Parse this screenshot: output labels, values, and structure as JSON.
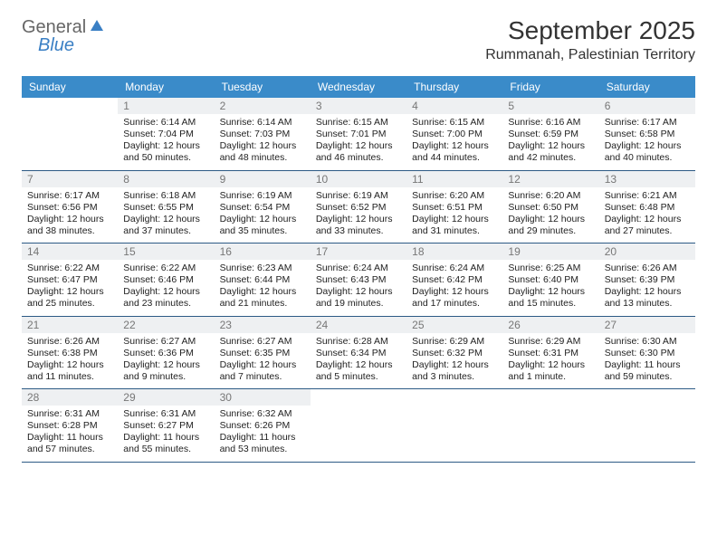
{
  "brand": {
    "general": "General",
    "blue": "Blue"
  },
  "title": "September 2025",
  "location": "Rummanah, Palestinian Territory",
  "colors": {
    "header_bg": "#3a8bc9",
    "header_text": "#ffffff",
    "daynum_bg": "#eef0f2",
    "daynum_text": "#777777",
    "divider": "#2d5a85",
    "body_text": "#222222",
    "logo_blue": "#3a7fc4",
    "logo_gray": "#666666"
  },
  "day_names": [
    "Sunday",
    "Monday",
    "Tuesday",
    "Wednesday",
    "Thursday",
    "Friday",
    "Saturday"
  ],
  "weeks": [
    [
      null,
      {
        "d": "1",
        "sr": "Sunrise: 6:14 AM",
        "ss": "Sunset: 7:04 PM",
        "dl1": "Daylight: 12 hours",
        "dl2": "and 50 minutes."
      },
      {
        "d": "2",
        "sr": "Sunrise: 6:14 AM",
        "ss": "Sunset: 7:03 PM",
        "dl1": "Daylight: 12 hours",
        "dl2": "and 48 minutes."
      },
      {
        "d": "3",
        "sr": "Sunrise: 6:15 AM",
        "ss": "Sunset: 7:01 PM",
        "dl1": "Daylight: 12 hours",
        "dl2": "and 46 minutes."
      },
      {
        "d": "4",
        "sr": "Sunrise: 6:15 AM",
        "ss": "Sunset: 7:00 PM",
        "dl1": "Daylight: 12 hours",
        "dl2": "and 44 minutes."
      },
      {
        "d": "5",
        "sr": "Sunrise: 6:16 AM",
        "ss": "Sunset: 6:59 PM",
        "dl1": "Daylight: 12 hours",
        "dl2": "and 42 minutes."
      },
      {
        "d": "6",
        "sr": "Sunrise: 6:17 AM",
        "ss": "Sunset: 6:58 PM",
        "dl1": "Daylight: 12 hours",
        "dl2": "and 40 minutes."
      }
    ],
    [
      {
        "d": "7",
        "sr": "Sunrise: 6:17 AM",
        "ss": "Sunset: 6:56 PM",
        "dl1": "Daylight: 12 hours",
        "dl2": "and 38 minutes."
      },
      {
        "d": "8",
        "sr": "Sunrise: 6:18 AM",
        "ss": "Sunset: 6:55 PM",
        "dl1": "Daylight: 12 hours",
        "dl2": "and 37 minutes."
      },
      {
        "d": "9",
        "sr": "Sunrise: 6:19 AM",
        "ss": "Sunset: 6:54 PM",
        "dl1": "Daylight: 12 hours",
        "dl2": "and 35 minutes."
      },
      {
        "d": "10",
        "sr": "Sunrise: 6:19 AM",
        "ss": "Sunset: 6:52 PM",
        "dl1": "Daylight: 12 hours",
        "dl2": "and 33 minutes."
      },
      {
        "d": "11",
        "sr": "Sunrise: 6:20 AM",
        "ss": "Sunset: 6:51 PM",
        "dl1": "Daylight: 12 hours",
        "dl2": "and 31 minutes."
      },
      {
        "d": "12",
        "sr": "Sunrise: 6:20 AM",
        "ss": "Sunset: 6:50 PM",
        "dl1": "Daylight: 12 hours",
        "dl2": "and 29 minutes."
      },
      {
        "d": "13",
        "sr": "Sunrise: 6:21 AM",
        "ss": "Sunset: 6:48 PM",
        "dl1": "Daylight: 12 hours",
        "dl2": "and 27 minutes."
      }
    ],
    [
      {
        "d": "14",
        "sr": "Sunrise: 6:22 AM",
        "ss": "Sunset: 6:47 PM",
        "dl1": "Daylight: 12 hours",
        "dl2": "and 25 minutes."
      },
      {
        "d": "15",
        "sr": "Sunrise: 6:22 AM",
        "ss": "Sunset: 6:46 PM",
        "dl1": "Daylight: 12 hours",
        "dl2": "and 23 minutes."
      },
      {
        "d": "16",
        "sr": "Sunrise: 6:23 AM",
        "ss": "Sunset: 6:44 PM",
        "dl1": "Daylight: 12 hours",
        "dl2": "and 21 minutes."
      },
      {
        "d": "17",
        "sr": "Sunrise: 6:24 AM",
        "ss": "Sunset: 6:43 PM",
        "dl1": "Daylight: 12 hours",
        "dl2": "and 19 minutes."
      },
      {
        "d": "18",
        "sr": "Sunrise: 6:24 AM",
        "ss": "Sunset: 6:42 PM",
        "dl1": "Daylight: 12 hours",
        "dl2": "and 17 minutes."
      },
      {
        "d": "19",
        "sr": "Sunrise: 6:25 AM",
        "ss": "Sunset: 6:40 PM",
        "dl1": "Daylight: 12 hours",
        "dl2": "and 15 minutes."
      },
      {
        "d": "20",
        "sr": "Sunrise: 6:26 AM",
        "ss": "Sunset: 6:39 PM",
        "dl1": "Daylight: 12 hours",
        "dl2": "and 13 minutes."
      }
    ],
    [
      {
        "d": "21",
        "sr": "Sunrise: 6:26 AM",
        "ss": "Sunset: 6:38 PM",
        "dl1": "Daylight: 12 hours",
        "dl2": "and 11 minutes."
      },
      {
        "d": "22",
        "sr": "Sunrise: 6:27 AM",
        "ss": "Sunset: 6:36 PM",
        "dl1": "Daylight: 12 hours",
        "dl2": "and 9 minutes."
      },
      {
        "d": "23",
        "sr": "Sunrise: 6:27 AM",
        "ss": "Sunset: 6:35 PM",
        "dl1": "Daylight: 12 hours",
        "dl2": "and 7 minutes."
      },
      {
        "d": "24",
        "sr": "Sunrise: 6:28 AM",
        "ss": "Sunset: 6:34 PM",
        "dl1": "Daylight: 12 hours",
        "dl2": "and 5 minutes."
      },
      {
        "d": "25",
        "sr": "Sunrise: 6:29 AM",
        "ss": "Sunset: 6:32 PM",
        "dl1": "Daylight: 12 hours",
        "dl2": "and 3 minutes."
      },
      {
        "d": "26",
        "sr": "Sunrise: 6:29 AM",
        "ss": "Sunset: 6:31 PM",
        "dl1": "Daylight: 12 hours",
        "dl2": "and 1 minute."
      },
      {
        "d": "27",
        "sr": "Sunrise: 6:30 AM",
        "ss": "Sunset: 6:30 PM",
        "dl1": "Daylight: 11 hours",
        "dl2": "and 59 minutes."
      }
    ],
    [
      {
        "d": "28",
        "sr": "Sunrise: 6:31 AM",
        "ss": "Sunset: 6:28 PM",
        "dl1": "Daylight: 11 hours",
        "dl2": "and 57 minutes."
      },
      {
        "d": "29",
        "sr": "Sunrise: 6:31 AM",
        "ss": "Sunset: 6:27 PM",
        "dl1": "Daylight: 11 hours",
        "dl2": "and 55 minutes."
      },
      {
        "d": "30",
        "sr": "Sunrise: 6:32 AM",
        "ss": "Sunset: 6:26 PM",
        "dl1": "Daylight: 11 hours",
        "dl2": "and 53 minutes."
      },
      null,
      null,
      null,
      null
    ]
  ]
}
